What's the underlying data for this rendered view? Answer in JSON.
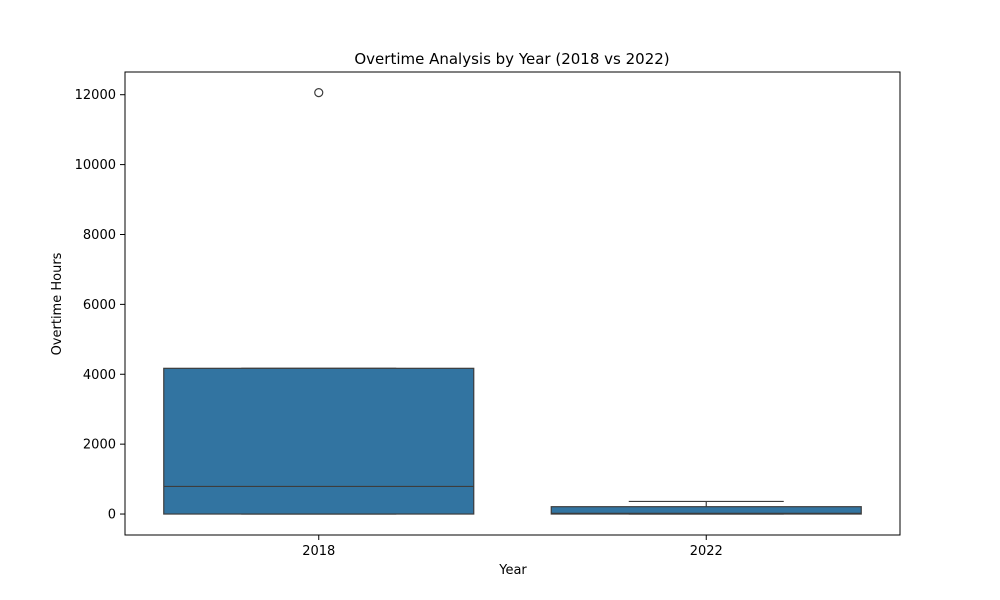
{
  "chart_data": {
    "type": "box",
    "title": "Overtime Analysis by Year (2018 vs 2022)",
    "xlabel": "Year",
    "ylabel": "Overtime Hours",
    "categories": [
      "2018",
      "2022"
    ],
    "ylim": [
      -600,
      12650
    ],
    "yticks": [
      0,
      2000,
      4000,
      6000,
      8000,
      10000,
      12000
    ],
    "ytick_labels": [
      "0",
      "2000",
      "4000",
      "6000",
      "8000",
      "10000",
      "12000"
    ],
    "boxes": [
      {
        "category": "2018",
        "whisker_low": 0,
        "q1": 0,
        "median": 790,
        "q3": 4170,
        "whisker_high": 4170,
        "outliers": [
          12060
        ]
      },
      {
        "category": "2022",
        "whisker_low": 0,
        "q1": 0,
        "median": 20,
        "q3": 210,
        "whisker_high": 360,
        "outliers": []
      }
    ],
    "box_color": "#3274a1",
    "edge_color": "#3d3d3d",
    "grid": false,
    "legend": "none"
  }
}
